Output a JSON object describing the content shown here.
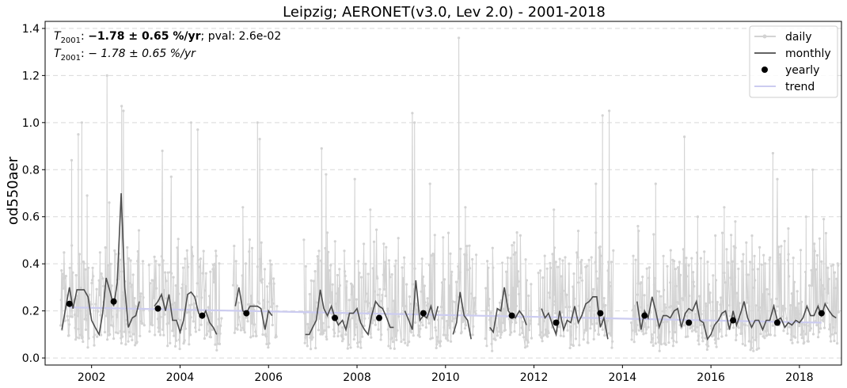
{
  "chart_data": {
    "type": "line",
    "title": "Leipzig; AERONET(v3.0, Lev 2.0) - 2001-2018",
    "xlabel": "",
    "ylabel": "od550aer",
    "xlim": [
      2000.95,
      2018.95
    ],
    "ylim": [
      -0.03,
      1.43
    ],
    "x_ticks": [
      2002,
      2004,
      2006,
      2008,
      2010,
      2012,
      2014,
      2016,
      2018
    ],
    "y_ticks": [
      0.0,
      0.2,
      0.4,
      0.6,
      0.8,
      1.0,
      1.2,
      1.4
    ],
    "grid": "horizontal-dashed",
    "legend_position": "top-right",
    "legend": [
      {
        "label": "daily",
        "style": "line-dot",
        "color": "#d3d3d3"
      },
      {
        "label": "monthly",
        "style": "line",
        "color": "#4d4d4d"
      },
      {
        "label": "yearly",
        "style": "dot",
        "color": "#000000"
      },
      {
        "label": "trend",
        "style": "line",
        "color": "#ccccf0"
      }
    ],
    "annotations": {
      "line1": {
        "sym": "T",
        "sub": "2001",
        "sep": ": ",
        "bold": "−1.78 ± 0.65 %/yr",
        "rest": "; pval: 2.6e-02"
      },
      "line2": {
        "sym": "T",
        "sub": "2001",
        "sep": ": ",
        "italic": "− 1.78 ± 0.65 %/yr"
      }
    },
    "series": [
      {
        "name": "monthly",
        "color": "#4d4d4d",
        "segments": [
          [
            [
              2001.33,
              0.12
            ],
            [
              2001.42,
              0.22
            ],
            [
              2001.5,
              0.3
            ],
            [
              2001.58,
              0.21
            ],
            [
              2001.67,
              0.29
            ],
            [
              2001.75,
              0.29
            ],
            [
              2001.83,
              0.29
            ],
            [
              2001.92,
              0.26
            ],
            [
              2002.0,
              0.16
            ],
            [
              2002.08,
              0.13
            ],
            [
              2002.17,
              0.1
            ],
            [
              2002.25,
              0.19
            ],
            [
              2002.33,
              0.34
            ],
            [
              2002.42,
              0.28
            ],
            [
              2002.5,
              0.22
            ],
            [
              2002.58,
              0.32
            ],
            [
              2002.67,
              0.7
            ],
            [
              2002.75,
              0.3
            ],
            [
              2002.83,
              0.13
            ],
            [
              2002.92,
              0.17
            ],
            [
              2003.0,
              0.18
            ],
            [
              2003.08,
              0.24
            ]
          ],
          [
            [
              2003.42,
              0.22
            ],
            [
              2003.5,
              0.24
            ],
            [
              2003.58,
              0.27
            ],
            [
              2003.67,
              0.2
            ],
            [
              2003.75,
              0.27
            ],
            [
              2003.83,
              0.16
            ],
            [
              2003.92,
              0.16
            ],
            [
              2004.0,
              0.11
            ],
            [
              2004.08,
              0.16
            ],
            [
              2004.17,
              0.27
            ],
            [
              2004.25,
              0.28
            ],
            [
              2004.33,
              0.26
            ],
            [
              2004.42,
              0.19
            ],
            [
              2004.5,
              0.17
            ],
            [
              2004.58,
              0.2
            ],
            [
              2004.67,
              0.15
            ],
            [
              2004.75,
              0.13
            ],
            [
              2004.83,
              0.1
            ]
          ],
          [
            [
              2005.25,
              0.22
            ],
            [
              2005.33,
              0.3
            ],
            [
              2005.42,
              0.2
            ],
            [
              2005.5,
              0.19
            ],
            [
              2005.58,
              0.22
            ],
            [
              2005.67,
              0.22
            ],
            [
              2005.75,
              0.22
            ],
            [
              2005.83,
              0.21
            ],
            [
              2005.92,
              0.12
            ],
            [
              2006.0,
              0.2
            ],
            [
              2006.08,
              0.18
            ]
          ],
          [
            [
              2006.83,
              0.1
            ],
            [
              2006.92,
              0.1
            ],
            [
              2007.0,
              0.13
            ],
            [
              2007.08,
              0.16
            ],
            [
              2007.17,
              0.29
            ],
            [
              2007.25,
              0.21
            ],
            [
              2007.33,
              0.18
            ],
            [
              2007.42,
              0.22
            ],
            [
              2007.5,
              0.17
            ],
            [
              2007.58,
              0.14
            ],
            [
              2007.67,
              0.16
            ],
            [
              2007.75,
              0.12
            ],
            [
              2007.83,
              0.19
            ],
            [
              2007.92,
              0.19
            ],
            [
              2008.0,
              0.21
            ],
            [
              2008.08,
              0.15
            ],
            [
              2008.17,
              0.12
            ],
            [
              2008.25,
              0.1
            ],
            [
              2008.33,
              0.18
            ],
            [
              2008.42,
              0.24
            ],
            [
              2008.5,
              0.22
            ],
            [
              2008.58,
              0.21
            ],
            [
              2008.67,
              0.17
            ],
            [
              2008.75,
              0.13
            ],
            [
              2008.83,
              0.13
            ]
          ],
          [
            [
              2009.08,
              0.2
            ],
            [
              2009.17,
              0.16
            ],
            [
              2009.25,
              0.12
            ],
            [
              2009.33,
              0.33
            ],
            [
              2009.42,
              0.16
            ],
            [
              2009.5,
              0.18
            ],
            [
              2009.58,
              0.17
            ],
            [
              2009.67,
              0.22
            ],
            [
              2009.75,
              0.16
            ],
            [
              2009.83,
              0.22
            ]
          ],
          [
            [
              2010.17,
              0.1
            ],
            [
              2010.25,
              0.15
            ],
            [
              2010.33,
              0.28
            ],
            [
              2010.42,
              0.18
            ],
            [
              2010.5,
              0.16
            ],
            [
              2010.58,
              0.08
            ]
          ],
          [
            [
              2011.0,
              0.13
            ],
            [
              2011.08,
              0.11
            ],
            [
              2011.17,
              0.21
            ],
            [
              2011.25,
              0.2
            ],
            [
              2011.33,
              0.3
            ],
            [
              2011.42,
              0.2
            ],
            [
              2011.5,
              0.18
            ],
            [
              2011.58,
              0.17
            ],
            [
              2011.67,
              0.2
            ],
            [
              2011.75,
              0.18
            ],
            [
              2011.83,
              0.14
            ]
          ],
          [
            [
              2012.17,
              0.21
            ],
            [
              2012.25,
              0.17
            ],
            [
              2012.33,
              0.19
            ],
            [
              2012.42,
              0.14
            ],
            [
              2012.5,
              0.1
            ],
            [
              2012.58,
              0.2
            ],
            [
              2012.67,
              0.12
            ],
            [
              2012.75,
              0.16
            ],
            [
              2012.83,
              0.15
            ],
            [
              2012.92,
              0.22
            ],
            [
              2013.0,
              0.15
            ],
            [
              2013.08,
              0.18
            ],
            [
              2013.17,
              0.23
            ],
            [
              2013.25,
              0.24
            ],
            [
              2013.33,
              0.26
            ],
            [
              2013.42,
              0.26
            ],
            [
              2013.5,
              0.13
            ],
            [
              2013.58,
              0.17
            ],
            [
              2013.67,
              0.08
            ]
          ],
          [
            [
              2014.33,
              0.24
            ],
            [
              2014.42,
              0.12
            ],
            [
              2014.5,
              0.2
            ],
            [
              2014.58,
              0.17
            ],
            [
              2014.67,
              0.26
            ],
            [
              2014.75,
              0.2
            ],
            [
              2014.83,
              0.13
            ],
            [
              2014.92,
              0.18
            ],
            [
              2015.0,
              0.18
            ],
            [
              2015.08,
              0.17
            ],
            [
              2015.17,
              0.2
            ],
            [
              2015.25,
              0.21
            ],
            [
              2015.33,
              0.13
            ],
            [
              2015.42,
              0.19
            ],
            [
              2015.5,
              0.21
            ],
            [
              2015.58,
              0.2
            ],
            [
              2015.67,
              0.24
            ],
            [
              2015.75,
              0.16
            ],
            [
              2015.83,
              0.15
            ],
            [
              2015.92,
              0.08
            ],
            [
              2016.0,
              0.1
            ],
            [
              2016.08,
              0.14
            ],
            [
              2016.17,
              0.16
            ],
            [
              2016.25,
              0.19
            ],
            [
              2016.33,
              0.2
            ],
            [
              2016.42,
              0.12
            ],
            [
              2016.5,
              0.2
            ],
            [
              2016.58,
              0.14
            ],
            [
              2016.67,
              0.19
            ],
            [
              2016.75,
              0.24
            ],
            [
              2016.83,
              0.17
            ],
            [
              2016.92,
              0.13
            ],
            [
              2017.0,
              0.16
            ],
            [
              2017.08,
              0.16
            ],
            [
              2017.17,
              0.12
            ],
            [
              2017.25,
              0.16
            ],
            [
              2017.33,
              0.16
            ],
            [
              2017.42,
              0.22
            ],
            [
              2017.5,
              0.16
            ],
            [
              2017.58,
              0.17
            ],
            [
              2017.67,
              0.13
            ],
            [
              2017.75,
              0.15
            ],
            [
              2017.83,
              0.14
            ],
            [
              2017.92,
              0.16
            ],
            [
              2018.0,
              0.15
            ],
            [
              2018.08,
              0.17
            ],
            [
              2018.17,
              0.22
            ],
            [
              2018.25,
              0.18
            ],
            [
              2018.33,
              0.18
            ],
            [
              2018.42,
              0.22
            ],
            [
              2018.5,
              0.18
            ],
            [
              2018.58,
              0.23
            ],
            [
              2018.67,
              0.2
            ],
            [
              2018.75,
              0.18
            ],
            [
              2018.83,
              0.17
            ]
          ]
        ]
      },
      {
        "name": "yearly",
        "color": "#000000",
        "x": [
          2001.5,
          2002.5,
          2003.5,
          2004.5,
          2005.5,
          2007.5,
          2008.5,
          2009.5,
          2011.5,
          2012.5,
          2013.5,
          2014.5,
          2015.5,
          2016.5,
          2017.5,
          2018.5
        ],
        "values": [
          0.23,
          0.24,
          0.21,
          0.18,
          0.19,
          0.17,
          0.17,
          0.19,
          0.18,
          0.15,
          0.19,
          0.18,
          0.15,
          0.16,
          0.15,
          0.19
        ]
      },
      {
        "name": "trend",
        "color": "#ccccf0",
        "x": [
          2001.5,
          2018.5
        ],
        "values": [
          0.215,
          0.15
        ]
      },
      {
        "name": "daily",
        "color": "#d3d3d3",
        "periods": [
          [
            2001.3,
            2003.2
          ],
          [
            2003.3,
            2004.95
          ],
          [
            2005.2,
            2006.2
          ],
          [
            2006.8,
            2008.95
          ],
          [
            2009.0,
            2010.7
          ],
          [
            2010.9,
            2011.95
          ],
          [
            2012.1,
            2013.8
          ],
          [
            2014.2,
            2018.9
          ]
        ],
        "spikes": [
          [
            2001.55,
            0.84
          ],
          [
            2001.7,
            0.95
          ],
          [
            2001.78,
            1.0
          ],
          [
            2001.9,
            0.69
          ],
          [
            2002.35,
            1.2
          ],
          [
            2002.4,
            0.66
          ],
          [
            2002.68,
            1.07
          ],
          [
            2002.72,
            1.05
          ],
          [
            2003.6,
            0.88
          ],
          [
            2003.8,
            0.77
          ],
          [
            2004.25,
            1.0
          ],
          [
            2004.4,
            0.97
          ],
          [
            2005.42,
            0.64
          ],
          [
            2005.75,
            1.0
          ],
          [
            2005.8,
            0.93
          ],
          [
            2007.2,
            0.89
          ],
          [
            2007.3,
            0.78
          ],
          [
            2007.95,
            0.76
          ],
          [
            2008.3,
            0.63
          ],
          [
            2009.25,
            1.04
          ],
          [
            2009.3,
            1.0
          ],
          [
            2009.65,
            0.74
          ],
          [
            2010.3,
            1.36
          ],
          [
            2010.45,
            0.64
          ],
          [
            2011.55,
            0.49
          ],
          [
            2012.45,
            0.63
          ],
          [
            2013.0,
            0.54
          ],
          [
            2013.4,
            0.74
          ],
          [
            2013.55,
            1.03
          ],
          [
            2013.7,
            1.05
          ],
          [
            2014.35,
            0.56
          ],
          [
            2014.75,
            0.74
          ],
          [
            2015.4,
            0.94
          ],
          [
            2015.7,
            0.6
          ],
          [
            2016.1,
            0.52
          ],
          [
            2016.3,
            0.64
          ],
          [
            2016.55,
            0.58
          ],
          [
            2016.8,
            0.49
          ],
          [
            2017.1,
            0.47
          ],
          [
            2017.4,
            0.87
          ],
          [
            2017.5,
            0.76
          ],
          [
            2017.75,
            0.55
          ],
          [
            2018.15,
            0.6
          ],
          [
            2018.3,
            0.8
          ],
          [
            2018.55,
            0.59
          ]
        ]
      }
    ]
  }
}
